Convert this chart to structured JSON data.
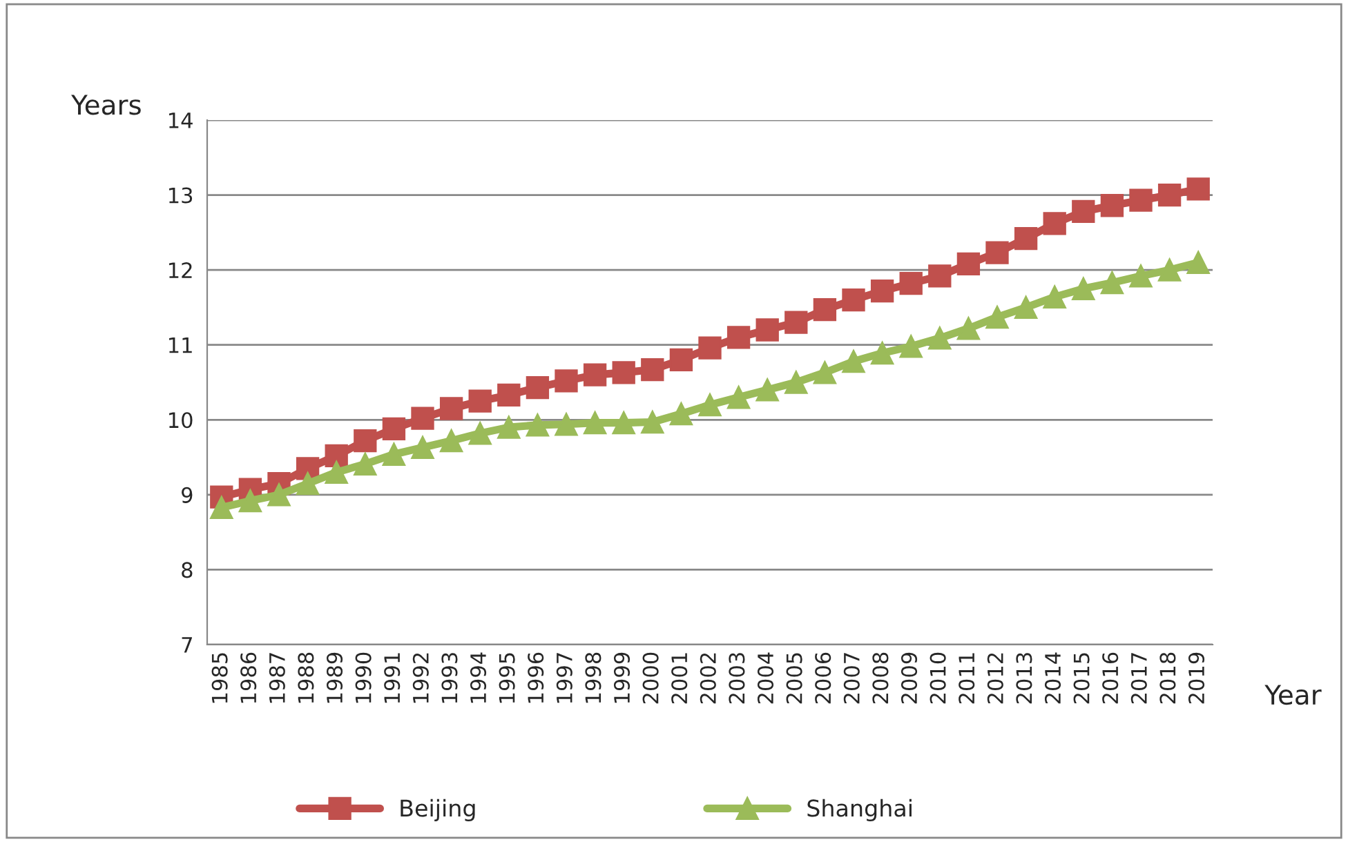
{
  "chart_data": {
    "type": "line",
    "xlabel": "Year",
    "ylabel": "Years",
    "categories": [
      "1985",
      "1986",
      "1987",
      "1988",
      "1989",
      "1990",
      "1991",
      "1992",
      "1993",
      "1994",
      "1995",
      "1996",
      "1997",
      "1998",
      "1999",
      "2000",
      "2001",
      "2002",
      "2003",
      "2004",
      "2005",
      "2006",
      "2007",
      "2008",
      "2009",
      "2010",
      "2011",
      "2012",
      "2013",
      "2014",
      "2015",
      "2016",
      "2017",
      "2018",
      "2019"
    ],
    "series": [
      {
        "name": "Beijing",
        "color": "#c0504d",
        "marker": "square",
        "values": [
          8.97,
          9.07,
          9.15,
          9.35,
          9.52,
          9.72,
          9.88,
          10.02,
          10.15,
          10.25,
          10.33,
          10.43,
          10.52,
          10.6,
          10.63,
          10.67,
          10.8,
          10.96,
          11.1,
          11.2,
          11.3,
          11.47,
          11.6,
          11.72,
          11.82,
          11.92,
          12.08,
          12.23,
          12.42,
          12.62,
          12.78,
          12.86,
          12.93,
          13.0,
          13.08
        ]
      },
      {
        "name": "Shanghai",
        "color": "#9bbb59",
        "marker": "triangle",
        "values": [
          8.83,
          8.92,
          9.0,
          9.15,
          9.3,
          9.41,
          9.54,
          9.63,
          9.72,
          9.82,
          9.9,
          9.93,
          9.94,
          9.96,
          9.96,
          9.97,
          10.08,
          10.2,
          10.3,
          10.4,
          10.5,
          10.63,
          10.78,
          10.89,
          10.98,
          11.09,
          11.22,
          11.37,
          11.5,
          11.64,
          11.75,
          11.83,
          11.92,
          12.0,
          12.1
        ]
      }
    ],
    "ylim": [
      7,
      14
    ],
    "yticks": [
      7,
      8,
      9,
      10,
      11,
      12,
      13,
      14
    ],
    "grid": "y",
    "legend": "bottom",
    "line_style": "solid"
  }
}
